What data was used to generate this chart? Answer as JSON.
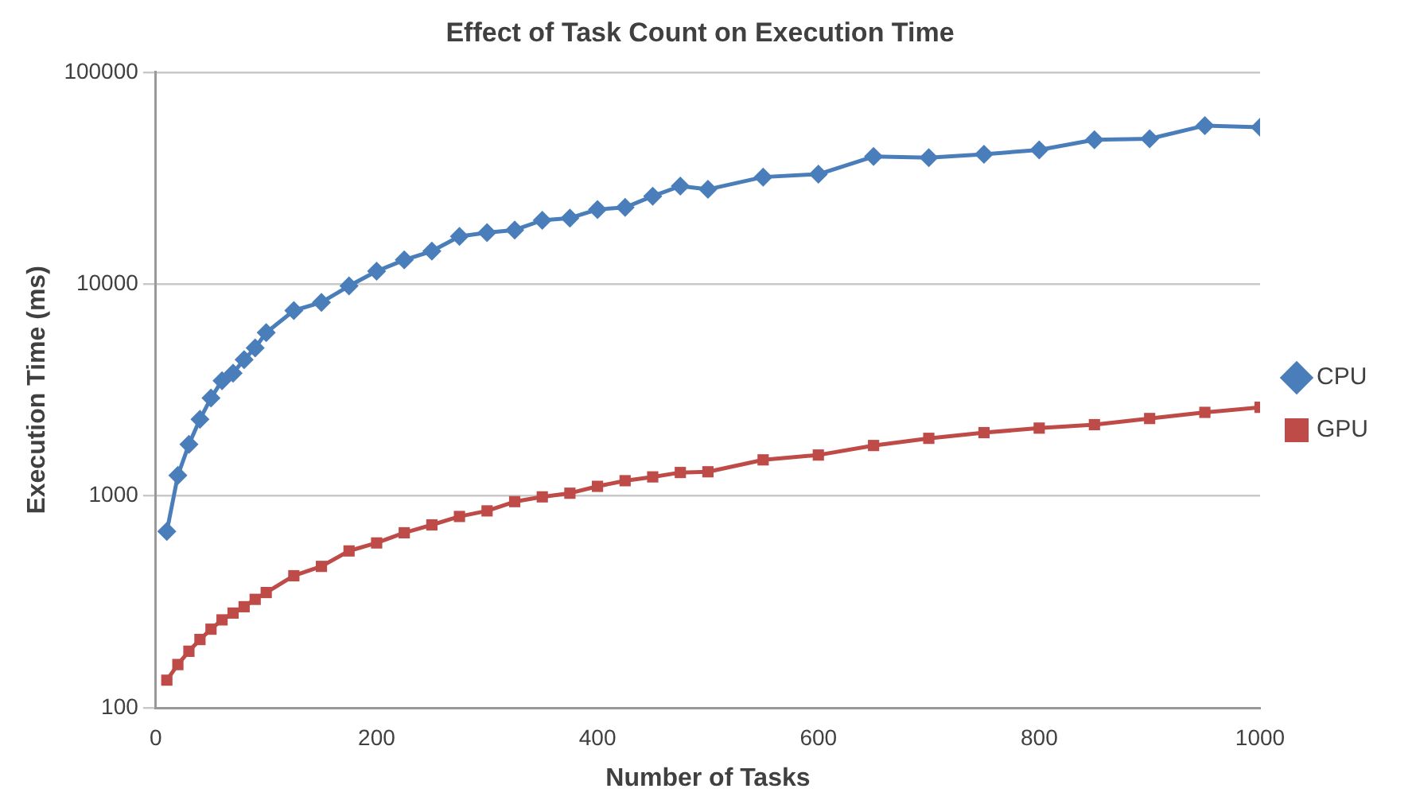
{
  "chart_data": {
    "type": "line",
    "title": "Effect of Task Count on Execution Time",
    "xlabel": "Number of Tasks",
    "ylabel": "Execution Time (ms)",
    "x": [
      10,
      20,
      30,
      40,
      50,
      60,
      70,
      80,
      90,
      100,
      125,
      150,
      175,
      200,
      225,
      250,
      275,
      300,
      325,
      350,
      375,
      400,
      425,
      450,
      475,
      500,
      550,
      600,
      650,
      700,
      750,
      800,
      850,
      900,
      950,
      1000
    ],
    "series": [
      {
        "name": "CPU",
        "color": "#4a7ebb",
        "marker": "diamond",
        "values": [
          680,
          1250,
          1750,
          2300,
          2900,
          3500,
          3800,
          4400,
          5000,
          5900,
          7500,
          8200,
          9800,
          11500,
          13000,
          14300,
          16800,
          17500,
          18000,
          20000,
          20500,
          22500,
          23000,
          26000,
          29000,
          28000,
          32000,
          33000,
          40000,
          39500,
          41000,
          43000,
          48000,
          48500,
          56000,
          55000
        ]
      },
      {
        "name": "GPU",
        "color": "#be4b48",
        "marker": "square",
        "values": [
          135,
          160,
          185,
          210,
          235,
          260,
          280,
          300,
          325,
          350,
          420,
          465,
          550,
          600,
          670,
          730,
          800,
          850,
          940,
          990,
          1030,
          1110,
          1180,
          1230,
          1290,
          1300,
          1480,
          1560,
          1730,
          1870,
          1990,
          2090,
          2170,
          2320,
          2480,
          2620
        ]
      }
    ],
    "log": "y",
    "xlim": [
      0,
      1000
    ],
    "xticks": [
      0,
      200,
      400,
      600,
      800,
      1000
    ],
    "ylim": [
      100,
      100000
    ],
    "yticks": [
      100,
      1000,
      10000,
      100000
    ],
    "grid": "y",
    "legend": "right",
    "line_style": "solid"
  }
}
